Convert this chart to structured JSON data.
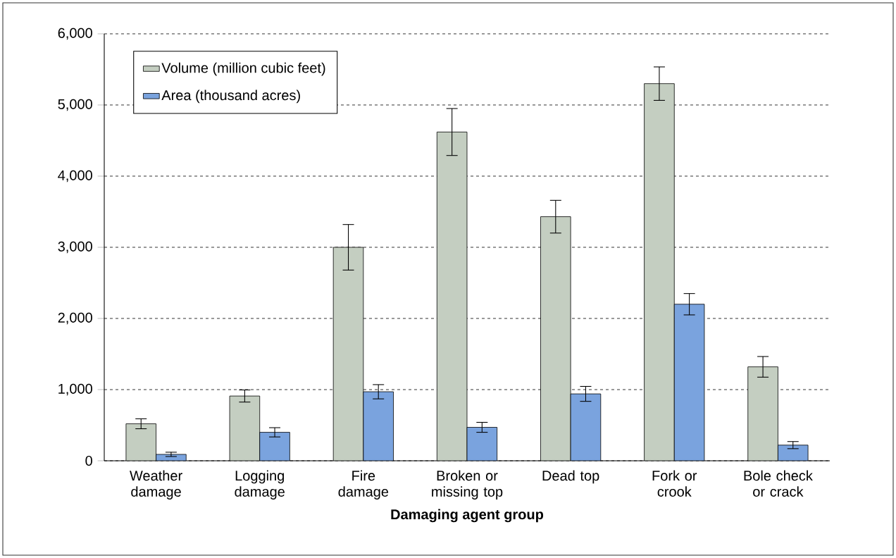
{
  "chart_data": {
    "type": "bar",
    "xlabel": "Damaging agent group",
    "categories": [
      "Weather damage",
      "Logging damage",
      "Fire damage",
      "Broken or missing top",
      "Dead top",
      "Fork or crook",
      "Bole check or crack"
    ],
    "series": [
      {
        "name": "Volume (million cubic feet)",
        "color": "#c4cec1",
        "values": [
          520,
          910,
          3000,
          4620,
          3430,
          5300,
          1320
        ],
        "errors": [
          70,
          85,
          320,
          330,
          230,
          235,
          145
        ]
      },
      {
        "name": "Area (thousand acres)",
        "color": "#7aa3de",
        "values": [
          90,
          400,
          970,
          470,
          940,
          2200,
          220
        ],
        "errors": [
          30,
          65,
          100,
          70,
          105,
          150,
          50
        ]
      }
    ],
    "ylim": [
      0,
      6000
    ],
    "yticks": [
      0,
      {
        "value": 1000,
        "label": "1,000"
      },
      {
        "value": 2000,
        "label": "2,000"
      },
      {
        "value": 3000,
        "label": "3,000"
      },
      {
        "value": 4000,
        "label": "4,000"
      },
      {
        "value": 5000,
        "label": "5,000"
      },
      {
        "value": 6000,
        "label": "6,000"
      }
    ],
    "grid": "y",
    "legend": "top left"
  }
}
